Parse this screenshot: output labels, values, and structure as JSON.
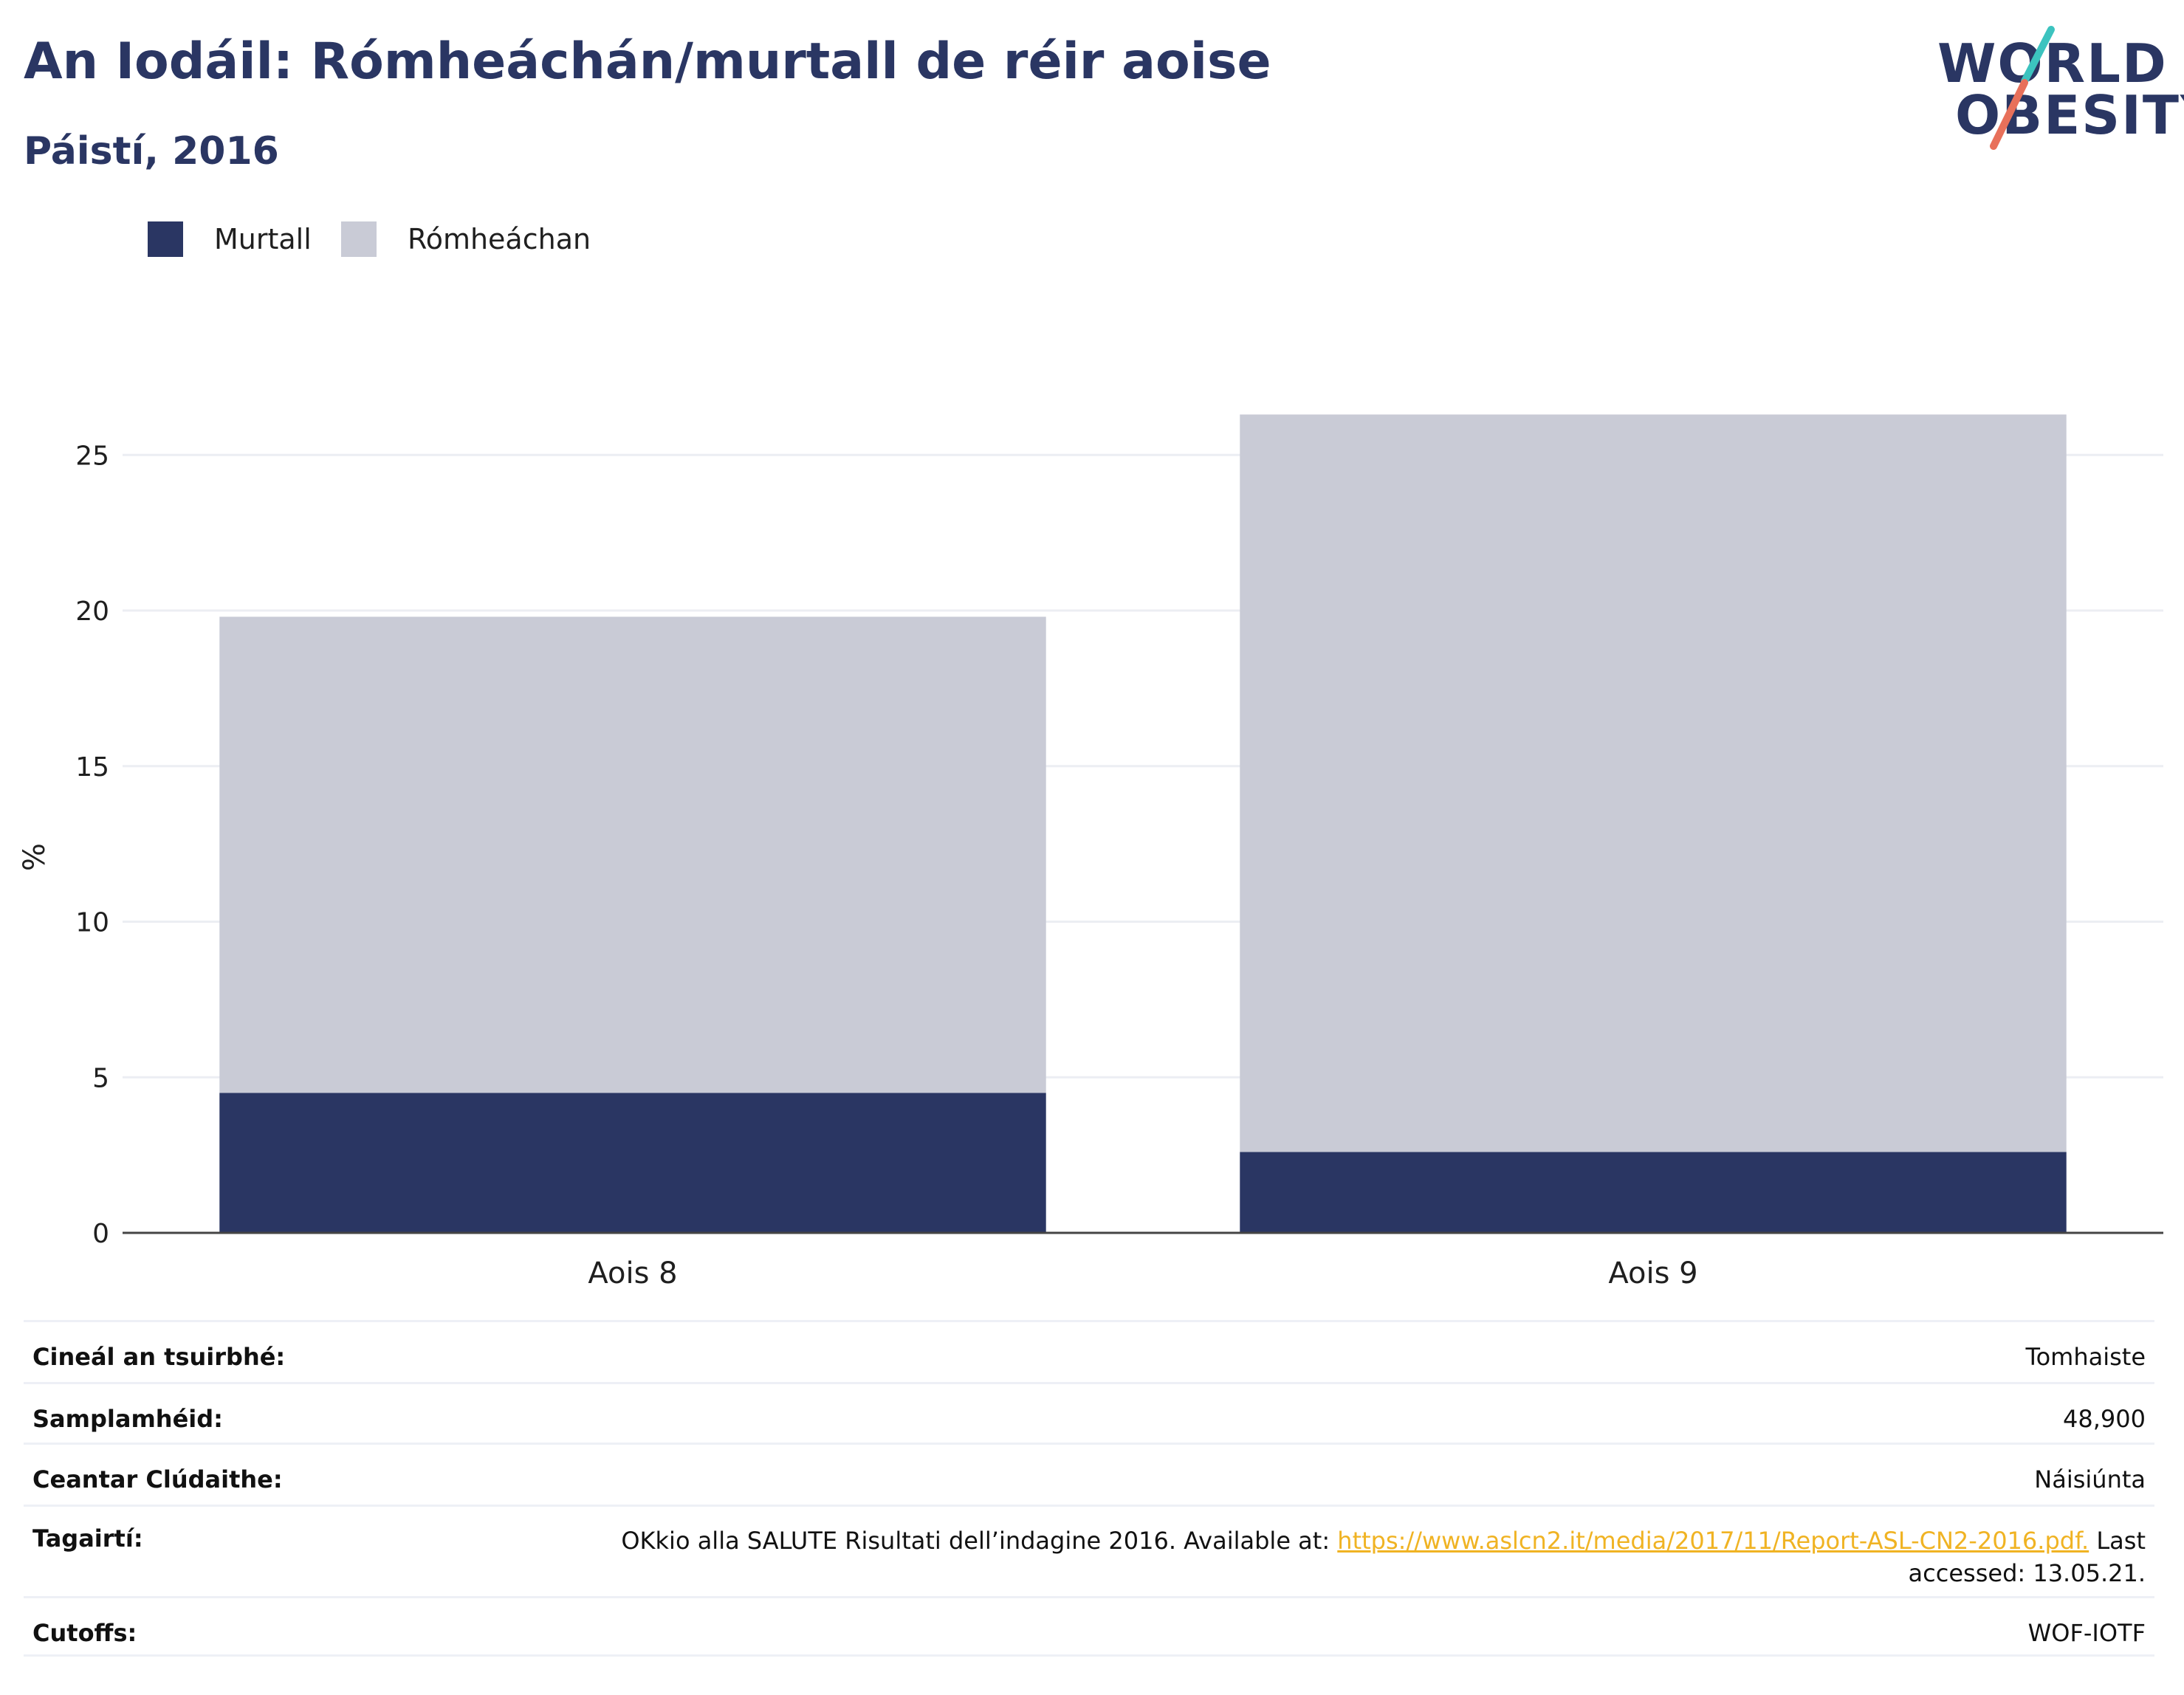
{
  "header": {
    "title": "An Iodáil: Rómheáchán/murtall de réir aoise",
    "subtitle": "Páistí, 2016"
  },
  "logo": {
    "line1": "WORLD",
    "line2": "OBESITY",
    "slash_colors": [
      "#3cc3bf",
      "#e8705a"
    ]
  },
  "chart_data": {
    "type": "bar",
    "stacked": true,
    "categories": [
      "Aois 8",
      "Aois 9"
    ],
    "series": [
      {
        "name": "Murtall",
        "color": "#2a3663",
        "values": [
          4.5,
          2.6
        ]
      },
      {
        "name": "Rómheáchan",
        "color": "#c9cbd6",
        "values": [
          15.3,
          23.7
        ]
      }
    ],
    "ylabel": "%",
    "xlabel": "",
    "ylim": [
      0,
      27
    ],
    "yticks": [
      0,
      5,
      10,
      15,
      20,
      25
    ],
    "grid": true,
    "legend_position": "top-left"
  },
  "info": {
    "survey_type": {
      "label": "Cineál an tsuirbhé:",
      "value": "Tomhaiste"
    },
    "sample_size": {
      "label": "Samplamhéid:",
      "value": "48,900"
    },
    "area_covered": {
      "label": "Ceantar Clúdaithe:",
      "value": "Náisiúnta"
    },
    "references": {
      "label": "Tagairtí:",
      "text_before": "OKkio alla SALUTE Risultati dell’indagine 2016. Available at: ",
      "link": "https://www.aslcn2.it/media/2017/11/Report-ASL-CN2-2016.pdf.",
      "text_after": " Last accessed: 13.05.21."
    },
    "cutoffs": {
      "label": "Cutoffs:",
      "value": "WOF-IOTF"
    }
  }
}
